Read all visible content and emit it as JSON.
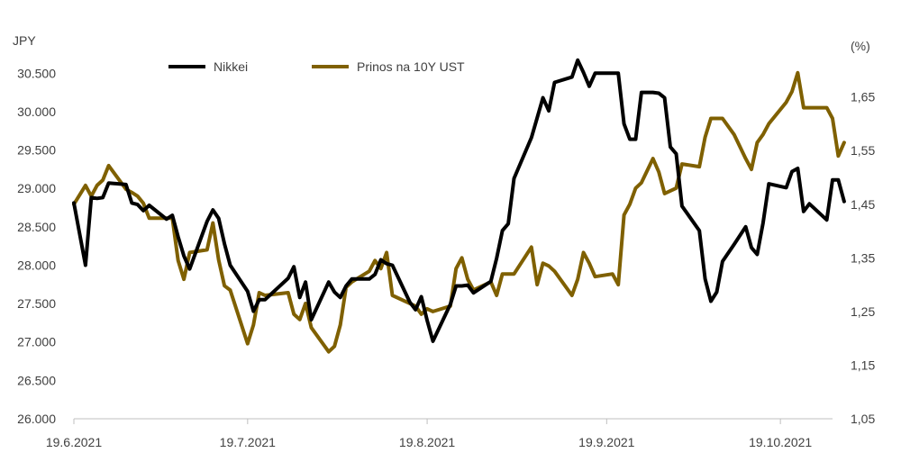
{
  "chart_data": {
    "type": "line",
    "y_left_unit": "JPY",
    "y_right_unit": "(%)",
    "y_left_ticks": [
      "26.000",
      "26.500",
      "27.000",
      "27.500",
      "28.000",
      "28.500",
      "29.000",
      "29.500",
      "30.000",
      "30.500"
    ],
    "y_right_ticks": [
      "1,05",
      "1,15",
      "1,25",
      "1,35",
      "1,45",
      "1,55",
      "1,65"
    ],
    "x_ticks": [
      "19.6.2021",
      "19.7.2021",
      "19.8.2021",
      "19.9.2021",
      "19.10.2021"
    ],
    "ylim_left": [
      26000,
      30750
    ],
    "ylim_right": [
      1.05,
      1.73
    ],
    "xlim": [
      "2021-06-19",
      "2021-10-28"
    ],
    "legend_position": "top",
    "grid": false,
    "series": [
      {
        "name": "Nikkei",
        "axis": "left",
        "color": "#000000",
        "points": [
          [
            "2021-06-19",
            28810
          ],
          [
            "2021-06-21",
            28000
          ],
          [
            "2021-06-22",
            28880
          ],
          [
            "2021-06-23",
            28870
          ],
          [
            "2021-06-24",
            28880
          ],
          [
            "2021-06-25",
            29070
          ],
          [
            "2021-06-28",
            29050
          ],
          [
            "2021-06-29",
            28810
          ],
          [
            "2021-06-30",
            28790
          ],
          [
            "2021-07-01",
            28710
          ],
          [
            "2021-07-02",
            28780
          ],
          [
            "2021-07-05",
            28600
          ],
          [
            "2021-07-06",
            28650
          ],
          [
            "2021-07-07",
            28370
          ],
          [
            "2021-07-08",
            28120
          ],
          [
            "2021-07-09",
            27950
          ],
          [
            "2021-07-12",
            28570
          ],
          [
            "2021-07-13",
            28720
          ],
          [
            "2021-07-14",
            28610
          ],
          [
            "2021-07-15",
            28280
          ],
          [
            "2021-07-16",
            28000
          ],
          [
            "2021-07-19",
            27660
          ],
          [
            "2021-07-20",
            27400
          ],
          [
            "2021-07-21",
            27550
          ],
          [
            "2021-07-22",
            27550
          ],
          [
            "2021-07-26",
            27830
          ],
          [
            "2021-07-27",
            27980
          ],
          [
            "2021-07-28",
            27580
          ],
          [
            "2021-07-29",
            27780
          ],
          [
            "2021-07-30",
            27290
          ],
          [
            "2021-08-02",
            27780
          ],
          [
            "2021-08-03",
            27650
          ],
          [
            "2021-08-04",
            27580
          ],
          [
            "2021-08-05",
            27730
          ],
          [
            "2021-08-06",
            27820
          ],
          [
            "2021-08-09",
            27820
          ],
          [
            "2021-08-10",
            27880
          ],
          [
            "2021-08-11",
            28070
          ],
          [
            "2021-08-12",
            28020
          ],
          [
            "2021-08-13",
            28000
          ],
          [
            "2021-08-16",
            27520
          ],
          [
            "2021-08-17",
            27420
          ],
          [
            "2021-08-18",
            27590
          ],
          [
            "2021-08-19",
            27280
          ],
          [
            "2021-08-20",
            27010
          ],
          [
            "2021-08-23",
            27490
          ],
          [
            "2021-08-24",
            27730
          ],
          [
            "2021-08-25",
            27730
          ],
          [
            "2021-08-26",
            27740
          ],
          [
            "2021-08-27",
            27640
          ],
          [
            "2021-08-30",
            27790
          ],
          [
            "2021-08-31",
            28090
          ],
          [
            "2021-09-01",
            28450
          ],
          [
            "2021-09-02",
            28540
          ],
          [
            "2021-09-03",
            29130
          ],
          [
            "2021-09-06",
            29660
          ],
          [
            "2021-09-07",
            29920
          ],
          [
            "2021-09-08",
            30180
          ],
          [
            "2021-09-09",
            30010
          ],
          [
            "2021-09-10",
            30380
          ],
          [
            "2021-09-13",
            30450
          ],
          [
            "2021-09-14",
            30670
          ],
          [
            "2021-09-15",
            30510
          ],
          [
            "2021-09-16",
            30330
          ],
          [
            "2021-09-17",
            30500
          ],
          [
            "2021-09-20",
            30500
          ],
          [
            "2021-09-21",
            30500
          ],
          [
            "2021-09-22",
            29840
          ],
          [
            "2021-09-23",
            29640
          ],
          [
            "2021-09-24",
            29640
          ],
          [
            "2021-09-25",
            30250
          ],
          [
            "2021-09-27",
            30250
          ],
          [
            "2021-09-28",
            30240
          ],
          [
            "2021-09-29",
            30180
          ],
          [
            "2021-09-30",
            29540
          ],
          [
            "2021-10-01",
            29450
          ],
          [
            "2021-10-02",
            28770
          ],
          [
            "2021-10-05",
            28450
          ],
          [
            "2021-10-06",
            27820
          ],
          [
            "2021-10-07",
            27530
          ],
          [
            "2021-10-08",
            27650
          ],
          [
            "2021-10-09",
            28050
          ],
          [
            "2021-10-11",
            28270
          ],
          [
            "2021-10-13",
            28500
          ],
          [
            "2021-10-14",
            28230
          ],
          [
            "2021-10-15",
            28140
          ],
          [
            "2021-10-16",
            28550
          ],
          [
            "2021-10-17",
            29060
          ],
          [
            "2021-10-20",
            29010
          ],
          [
            "2021-10-21",
            29220
          ],
          [
            "2021-10-22",
            29260
          ],
          [
            "2021-10-23",
            28700
          ],
          [
            "2021-10-24",
            28800
          ],
          [
            "2021-10-27",
            28590
          ],
          [
            "2021-10-28",
            29110
          ],
          [
            "2021-10-29",
            29110
          ],
          [
            "2021-10-30",
            28830
          ]
        ]
      },
      {
        "name": "Prinos na 10Y UST",
        "axis": "right",
        "color": "#7f6000",
        "points": [
          [
            "2021-06-19",
            1.45
          ],
          [
            "2021-06-21",
            1.485
          ],
          [
            "2021-06-22",
            1.465
          ],
          [
            "2021-06-23",
            1.485
          ],
          [
            "2021-06-24",
            1.495
          ],
          [
            "2021-06-25",
            1.522
          ],
          [
            "2021-06-28",
            1.478
          ],
          [
            "2021-06-29",
            1.472
          ],
          [
            "2021-06-30",
            1.465
          ],
          [
            "2021-07-01",
            1.452
          ],
          [
            "2021-07-02",
            1.424
          ],
          [
            "2021-07-05",
            1.424
          ],
          [
            "2021-07-06",
            1.424
          ],
          [
            "2021-07-07",
            1.345
          ],
          [
            "2021-07-08",
            1.31
          ],
          [
            "2021-07-09",
            1.36
          ],
          [
            "2021-07-12",
            1.365
          ],
          [
            "2021-07-13",
            1.415
          ],
          [
            "2021-07-14",
            1.346
          ],
          [
            "2021-07-15",
            1.298
          ],
          [
            "2021-07-16",
            1.29
          ],
          [
            "2021-07-19",
            1.19
          ],
          [
            "2021-07-20",
            1.225
          ],
          [
            "2021-07-21",
            1.285
          ],
          [
            "2021-07-22",
            1.28
          ],
          [
            "2021-07-26",
            1.285
          ],
          [
            "2021-07-27",
            1.245
          ],
          [
            "2021-07-28",
            1.235
          ],
          [
            "2021-07-29",
            1.265
          ],
          [
            "2021-07-30",
            1.22
          ],
          [
            "2021-08-02",
            1.175
          ],
          [
            "2021-08-03",
            1.185
          ],
          [
            "2021-08-04",
            1.225
          ],
          [
            "2021-08-05",
            1.295
          ],
          [
            "2021-08-06",
            1.305
          ],
          [
            "2021-08-09",
            1.325
          ],
          [
            "2021-08-10",
            1.345
          ],
          [
            "2021-08-11",
            1.33
          ],
          [
            "2021-08-12",
            1.36
          ],
          [
            "2021-08-13",
            1.28
          ],
          [
            "2021-08-16",
            1.265
          ],
          [
            "2021-08-17",
            1.26
          ],
          [
            "2021-08-18",
            1.245
          ],
          [
            "2021-08-19",
            1.255
          ],
          [
            "2021-08-20",
            1.25
          ],
          [
            "2021-08-23",
            1.26
          ],
          [
            "2021-08-24",
            1.33
          ],
          [
            "2021-08-25",
            1.35
          ],
          [
            "2021-08-26",
            1.31
          ],
          [
            "2021-08-27",
            1.29
          ],
          [
            "2021-08-30",
            1.305
          ],
          [
            "2021-08-31",
            1.28
          ],
          [
            "2021-09-01",
            1.32
          ],
          [
            "2021-09-02",
            1.32
          ],
          [
            "2021-09-03",
            1.32
          ],
          [
            "2021-09-06",
            1.37
          ],
          [
            "2021-09-07",
            1.3
          ],
          [
            "2021-09-08",
            1.34
          ],
          [
            "2021-09-09",
            1.335
          ],
          [
            "2021-09-10",
            1.325
          ],
          [
            "2021-09-13",
            1.28
          ],
          [
            "2021-09-14",
            1.31
          ],
          [
            "2021-09-15",
            1.36
          ],
          [
            "2021-09-16",
            1.34
          ],
          [
            "2021-09-17",
            1.315
          ],
          [
            "2021-09-20",
            1.32
          ],
          [
            "2021-09-21",
            1.3
          ],
          [
            "2021-09-22",
            1.43
          ],
          [
            "2021-09-23",
            1.45
          ],
          [
            "2021-09-24",
            1.48
          ],
          [
            "2021-09-25",
            1.49
          ],
          [
            "2021-09-27",
            1.535
          ],
          [
            "2021-09-28",
            1.51
          ],
          [
            "2021-09-29",
            1.47
          ],
          [
            "2021-09-30",
            1.475
          ],
          [
            "2021-10-01",
            1.48
          ],
          [
            "2021-10-02",
            1.525
          ],
          [
            "2021-10-05",
            1.52
          ],
          [
            "2021-10-06",
            1.575
          ],
          [
            "2021-10-07",
            1.61
          ],
          [
            "2021-10-08",
            1.61
          ],
          [
            "2021-10-09",
            1.61
          ],
          [
            "2021-10-11",
            1.58
          ],
          [
            "2021-10-13",
            1.535
          ],
          [
            "2021-10-14",
            1.515
          ],
          [
            "2021-10-15",
            1.565
          ],
          [
            "2021-10-16",
            1.58
          ],
          [
            "2021-10-17",
            1.6
          ],
          [
            "2021-10-20",
            1.64
          ],
          [
            "2021-10-21",
            1.66
          ],
          [
            "2021-10-22",
            1.695
          ],
          [
            "2021-10-23",
            1.63
          ],
          [
            "2021-10-24",
            1.63
          ],
          [
            "2021-10-27",
            1.63
          ],
          [
            "2021-10-28",
            1.61
          ],
          [
            "2021-10-29",
            1.54
          ],
          [
            "2021-10-30",
            1.565
          ]
        ]
      }
    ]
  }
}
